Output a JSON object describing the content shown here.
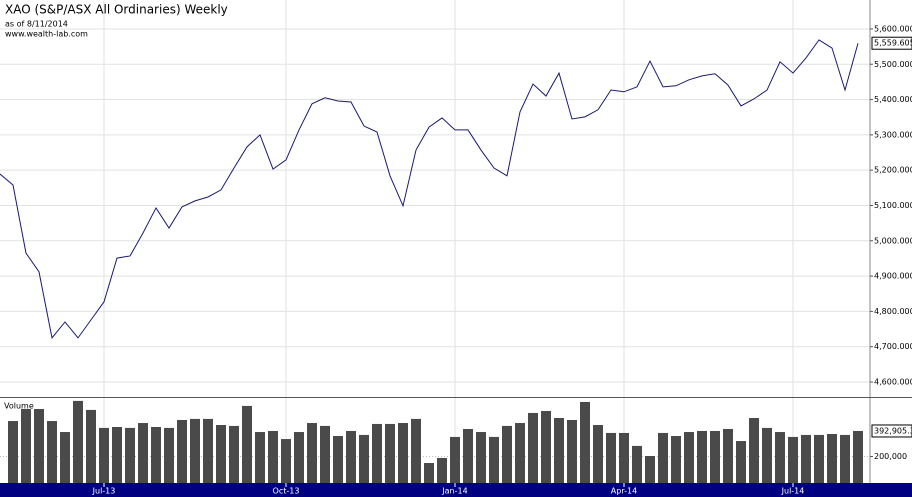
{
  "chart_data": [
    {
      "type": "line",
      "title": "XAO (S&P/ASX All Ordinaries) Weekly",
      "subtitle": "as of 8/11/2014",
      "source": "www.wealth-lab.com",
      "color": "#1a1a6e",
      "values": [
        5189,
        5158,
        4965,
        4912,
        4725,
        4770,
        4725,
        4776,
        4827,
        4951,
        4957,
        5022,
        5093,
        5036,
        5096,
        5113,
        5124,
        5144,
        5206,
        5266,
        5300,
        5203,
        5229,
        5314,
        5388,
        5405,
        5396,
        5393,
        5325,
        5308,
        5184,
        5099,
        5257,
        5322,
        5348,
        5314,
        5314,
        5257,
        5206,
        5184,
        5365,
        5444,
        5410,
        5475,
        5345,
        5351,
        5371,
        5427,
        5422,
        5436,
        5509,
        5436,
        5439,
        5456,
        5467,
        5473,
        5441,
        5382,
        5402,
        5427,
        5507,
        5475,
        5518,
        5569,
        5546,
        5427,
        5559.605
      ],
      "last_value_label": "5,559.605",
      "ylim": [
        4557.5,
        5682
      ],
      "yticks": [
        {
          "value": 4600,
          "label": "4,600.000"
        },
        {
          "value": 4700,
          "label": "4,700.000"
        },
        {
          "value": 4800,
          "label": "4,800.000"
        },
        {
          "value": 4900,
          "label": "4,900.000"
        },
        {
          "value": 5000,
          "label": "5,000.000"
        },
        {
          "value": 5100,
          "label": "5,100.000"
        },
        {
          "value": 5200,
          "label": "5,200.000"
        },
        {
          "value": 5300,
          "label": "5,300.000"
        },
        {
          "value": 5400,
          "label": "5,400.000"
        },
        {
          "value": 5500,
          "label": "5,500.000"
        },
        {
          "value": 5600,
          "label": "5,600.000"
        }
      ],
      "grid": true
    },
    {
      "type": "bar",
      "title": "Volume",
      "color": "#4a4a4a",
      "categories": [
        null,
        null,
        null,
        null,
        null,
        null,
        null,
        null,
        "Jul-13",
        null,
        null,
        null,
        null,
        null,
        null,
        null,
        null,
        null,
        null,
        null,
        null,
        null,
        "Oct-13",
        null,
        null,
        null,
        null,
        null,
        null,
        null,
        null,
        null,
        null,
        null,
        null,
        "Jan-14",
        null,
        null,
        null,
        null,
        null,
        null,
        null,
        null,
        null,
        null,
        null,
        null,
        "Apr-14",
        null,
        null,
        null,
        null,
        null,
        null,
        null,
        null,
        null,
        null,
        null,
        null,
        "Jul-14",
        null,
        null,
        null,
        null,
        null
      ],
      "values": [
        null,
        468000,
        559000,
        559000,
        468000,
        385000,
        620000,
        552000,
        416000,
        423000,
        416000,
        453000,
        423000,
        416000,
        476000,
        484000,
        484000,
        438000,
        431000,
        582000,
        385000,
        393000,
        332000,
        385000,
        453000,
        431000,
        355000,
        393000,
        363000,
        446000,
        446000,
        453000,
        484000,
        151000,
        189000,
        348000,
        408000,
        385000,
        348000,
        431000,
        453000,
        529000,
        544000,
        491000,
        476000,
        612000,
        438000,
        378000,
        378000,
        280000,
        204000,
        378000,
        355000,
        385000,
        393000,
        393000,
        408000,
        317000,
        491000,
        416000,
        385000,
        348000,
        363000,
        363000,
        370000,
        363000,
        392905.3
      ],
      "last_value_label": "392,905.3",
      "ylim": [
        0,
        642000
      ],
      "yticks": [
        {
          "value": 200000,
          "label": "200,000"
        }
      ],
      "grid": true
    }
  ]
}
